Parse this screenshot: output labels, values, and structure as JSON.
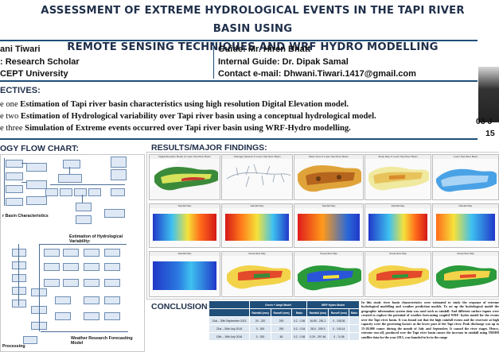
{
  "header": {
    "title_line1": "Assessment of extreme hydrological events in the Tapi river basin using",
    "title_line2": "remote sensing techniques and WRF Hydro modelling"
  },
  "author": {
    "name": "ani Tiwari",
    "role": ": Research Scholar",
    "org": "CEPT University"
  },
  "guides": {
    "guide": "Guide: Mr. Hiren Bhatt",
    "internal": "Internal Guide: Dr. Dipak Samal",
    "contact": "Contact e-mail: Dhwani.Tiwari.1417@gmail.com"
  },
  "objectives": {
    "heading": "ECTIVES:",
    "items": [
      {
        "prefix": "e one ",
        "text": "Estimation of Tapi river basin characteristics using high resolution Digital Elevation model."
      },
      {
        "prefix": "e two ",
        "text": "Estimation of Hydrological variability over Tapi river basin using a conceptual hydrological model."
      },
      {
        "prefix": "e three ",
        "text": "Simulation of Extreme events occurred over Tapi river basin using WRF-Hydro modelling."
      }
    ]
  },
  "date": {
    "line1": "03 J",
    "line2": "15"
  },
  "flowchart": {
    "heading": "OGY FLOW CHART:",
    "label1": "r Basin Characteristics",
    "label2": "Estimation of Hydrological Variability:",
    "label3": "Processing",
    "label4": "Weather Research Forecasting Model"
  },
  "results": {
    "heading": "RESULTS/MAJOR FINDINGS:",
    "maps": [
      "Digital Elevation Model of Lower Tapi River Basin",
      "Drainage Network of Lower Tapi River Basin",
      "Basin Area of Lower Tapi River Basin",
      "Slope Map of Lower Tapi River Basin",
      "Lower Tapi River Basin",
      "Rainfall Map",
      "Rainfall Map",
      "Rainfall Map",
      "Rainfall Map",
      "Rainfall Map",
      "Rainfall Map",
      "Streamflow Map",
      "Streamflow Map",
      "Streamflow Map",
      "Streamflow Map"
    ]
  },
  "conclusion": {
    "heading": "CONCLUSION:",
    "table": {
      "header_a": "Green + Ampt Model",
      "header_b": "WRF Hydro Model",
      "sub": [
        "",
        "Rainfall (mm)",
        "Runoff (mm)",
        "Ratio",
        "Rainfall (mm)",
        "Runoff (mm)",
        "Ratio"
      ],
      "rows": [
        [
          "21st – 30th September 2013",
          "20 - 220",
          "200",
          "0.2 - 0.36",
          "16.80 - 281.1",
          "0 - 108.36",
          ""
        ],
        [
          "21st – 30th July 2015",
          "0 - 300",
          "250",
          "0.2 - 0.34",
          "28.0 - 209.3",
          "0 - 100.14",
          ""
        ],
        [
          "10th – 19th July 2016",
          "0 - 320",
          "60",
          "0.2 - 0.36",
          "0.29 - 297.46",
          "0 - 74.36",
          ""
        ]
      ]
    },
    "text": "In this study river basin characteristics were estimated to study the response of extreme hydrological modelling and weather prediction models. To set up the hydrological model the geographic information system data was used such as rainfall. And different surface inputs were created to explore the potential of weather forecasting coupled WRF- hydro model for the events over the Tapi river basin. It was found out that the high rainfall events and the reservoir at high capacity were the governing factors at the lower part of the Tapi river. Peak discharge was up to 15-20,000 cumec during the month of July and September. It caused the river stages. Hence, extreme run off, produced over the Tapi river basin causes the increase in rainfall using TRMM satellite data for the year 2013, was founded to be in the range"
  }
}
